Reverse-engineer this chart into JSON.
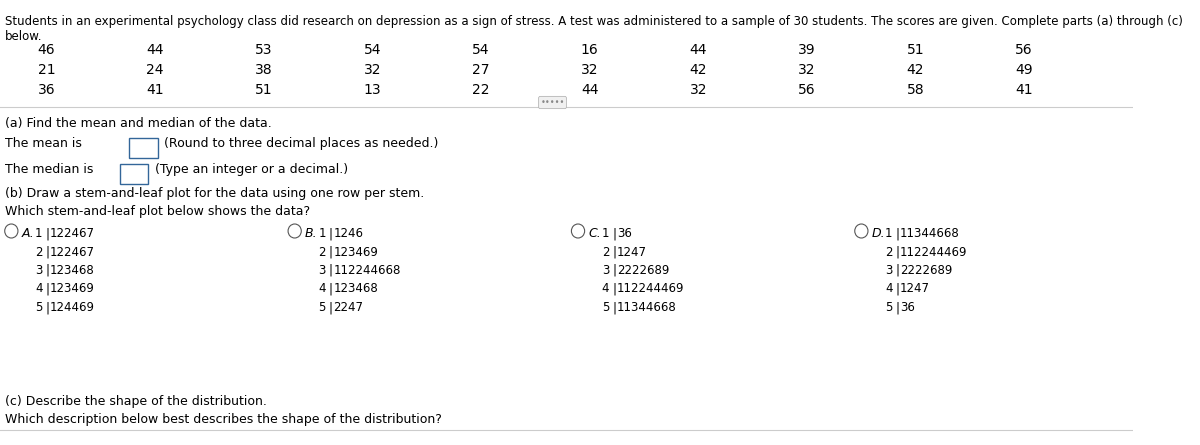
{
  "header": "Students in an experimental psychology class did research on depression as a sign of stress. A test was administered to a sample of 30 students. The scores are given. Complete parts (a) through (c) below.",
  "data_rows": [
    [
      46,
      44,
      53,
      54,
      54,
      16,
      44,
      39,
      51,
      56
    ],
    [
      21,
      24,
      38,
      32,
      27,
      32,
      42,
      32,
      42,
      49
    ],
    [
      36,
      41,
      51,
      13,
      22,
      44,
      32,
      56,
      58,
      41
    ]
  ],
  "part_a_label": "(a) Find the mean and median of the data.",
  "mean_label": "The mean is",
  "mean_box": "",
  "mean_note": "(Round to three decimal places as needed.)",
  "median_label": "The median is",
  "median_box": "",
  "median_note": "(Type an integer or a decimal.)",
  "part_b_label": "(b) Draw a stem-and-leaf plot for the data using one row per stem.",
  "stem_question": "Which stem-and-leaf plot below shows the data?",
  "option_A_label": "A.",
  "option_A": [
    "1|122467",
    "2|122467",
    "3|123468",
    "4|123469",
    "5|124469"
  ],
  "option_B_label": "B.",
  "option_B": [
    "1|1246",
    "2|123469",
    "3|112244668",
    "4|123468",
    "5|2247"
  ],
  "option_C_label": "C.",
  "option_C": [
    "1|36",
    "2|1247",
    "3|2222689",
    "4|112244469",
    "5|11344668"
  ],
  "option_D_label": "D.",
  "option_D": [
    "1|11344668",
    "2|112244469",
    "3|2222689",
    "4|1247",
    "5|36"
  ],
  "part_c_label": "(c) Describe the shape of the distribution.",
  "part_c_question": "Which description below best describes the shape of the distribution?",
  "bg_color": "#ffffff",
  "text_color": "#000000",
  "font_size": 9,
  "header_font_size": 8.5
}
